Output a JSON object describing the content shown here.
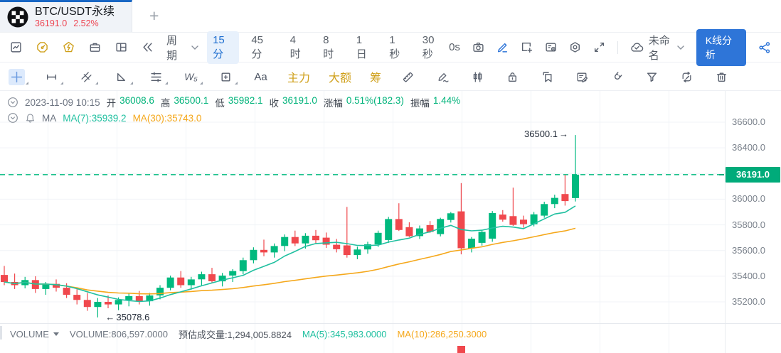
{
  "tab": {
    "symbol": "BTC/USDT永续",
    "price": "36191.0",
    "change": "2.52%",
    "new_tab": "+"
  },
  "toolbar": {
    "period": "周期",
    "timeframes": [
      "15分",
      "45分",
      "4时",
      "8时",
      "1日",
      "1秒",
      "30秒"
    ],
    "active_timeframe": "15分",
    "speed": "0s",
    "workspace": "未命名",
    "analyze_button": "K线分析"
  },
  "drawbar": {
    "wave": "W₅",
    "text_tool": "Aa",
    "main_force": "主力",
    "large_order": "大额",
    "chips": "筹"
  },
  "legend": {
    "time": "2023-11-09 10:15",
    "fields": [
      {
        "label": "开",
        "value": "36008.6"
      },
      {
        "label": "高",
        "value": "36500.1"
      },
      {
        "label": "低",
        "value": "35982.1"
      },
      {
        "label": "收",
        "value": "36191.0"
      },
      {
        "label": "涨幅",
        "value": "0.51%(182.3)"
      },
      {
        "label": "振幅",
        "value": "1.44%"
      }
    ],
    "ma_title": "MA",
    "ma7": "MA(7):35939.2",
    "ma30": "MA(30):35743.0"
  },
  "chart_data": {
    "type": "candlestick",
    "symbol": "BTC/USDT永续",
    "interval": "15分",
    "y_ticks": [
      36600.0,
      36400.0,
      36200.0,
      36000.0,
      35800.0,
      35600.0,
      35400.0,
      35200.0
    ],
    "hidden_tick": 36200.0,
    "ylim": [
      35050,
      36650
    ],
    "price_line": {
      "value": 36191.0,
      "label": "36191.0"
    },
    "annotations": [
      {
        "type": "high",
        "text": "36500.1",
        "arrow": "→"
      },
      {
        "type": "low",
        "text": "35078.6",
        "arrow": "←"
      }
    ],
    "last_candle": {
      "open": 36008.6,
      "high": 36500.1,
      "low": 35982.1,
      "close": 36191.0,
      "change_pct": "0.51%",
      "change_abs": "182.3",
      "amplitude": "1.44%"
    },
    "ma_last": {
      "ma7": 35939.2,
      "ma30": 35743.0
    },
    "candles": [
      [
        35410,
        35480,
        35330,
        35355
      ],
      [
        35355,
        35420,
        35300,
        35330
      ],
      [
        35330,
        35395,
        35305,
        35370
      ],
      [
        35370,
        35400,
        35270,
        35300
      ],
      [
        35300,
        35355,
        35255,
        35340
      ],
      [
        35340,
        35375,
        35280,
        35310
      ],
      [
        35310,
        35345,
        35230,
        35255
      ],
      [
        35255,
        35310,
        35180,
        35215
      ],
      [
        35215,
        35270,
        35130,
        35160
      ],
      [
        35160,
        35230,
        35078.6,
        35200
      ],
      [
        35200,
        35250,
        35150,
        35180
      ],
      [
        35180,
        35235,
        35135,
        35215
      ],
      [
        35215,
        35265,
        35165,
        35245
      ],
      [
        35245,
        35285,
        35180,
        35205
      ],
      [
        35205,
        35270,
        35170,
        35250
      ],
      [
        35250,
        35330,
        35220,
        35310
      ],
      [
        35310,
        35405,
        35290,
        35390
      ],
      [
        35390,
        35440,
        35310,
        35330
      ],
      [
        35330,
        35395,
        35295,
        35375
      ],
      [
        35375,
        35435,
        35330,
        35415
      ],
      [
        35415,
        35465,
        35345,
        35360
      ],
      [
        35360,
        35425,
        35320,
        35405
      ],
      [
        35405,
        35455,
        35355,
        35440
      ],
      [
        35440,
        35545,
        35415,
        35525
      ],
      [
        35525,
        35625,
        35500,
        35605
      ],
      [
        35605,
        35685,
        35555,
        35585
      ],
      [
        35585,
        35655,
        35545,
        35635
      ],
      [
        35635,
        35725,
        35595,
        35705
      ],
      [
        35705,
        35755,
        35635,
        35655
      ],
      [
        35655,
        35735,
        35615,
        35715
      ],
      [
        35715,
        35760,
        35655,
        35680
      ],
      [
        35700,
        35740,
        35620,
        35645
      ],
      [
        35645,
        35690,
        35585,
        35610
      ],
      [
        35640,
        35940,
        35545,
        35565
      ],
      [
        35565,
        35630,
        35532,
        35608
      ],
      [
        35608,
        35668,
        35575,
        35648
      ],
      [
        35648,
        35755,
        35628,
        35738
      ],
      [
        35682,
        35862,
        35660,
        35845
      ],
      [
        35845,
        35968,
        35752,
        35760
      ],
      [
        35782,
        35820,
        35705,
        35712
      ],
      [
        35712,
        35795,
        35690,
        35772
      ],
      [
        35798,
        35830,
        35738,
        35745
      ],
      [
        35728,
        35855,
        35710,
        35846
      ],
      [
        35838,
        35900,
        35818,
        35890
      ],
      [
        35905,
        36125,
        35570,
        35618
      ],
      [
        35618,
        35705,
        35585,
        35692
      ],
      [
        35660,
        35758,
        35638,
        35745
      ],
      [
        35692,
        35908,
        35668,
        35892
      ],
      [
        35880,
        35915,
        35825,
        35840
      ],
      [
        35868,
        36090,
        35792,
        35800
      ],
      [
        35840,
        35872,
        35778,
        35805
      ],
      [
        35805,
        35900,
        35788,
        35882
      ],
      [
        35872,
        35980,
        35855,
        35962
      ],
      [
        35962,
        36035,
        35930,
        36010
      ],
      [
        36040,
        36190,
        35950,
        35985
      ],
      [
        36008.6,
        36500.1,
        35982.1,
        36191.0
      ]
    ],
    "colors": {
      "up": "#00b97e",
      "down": "#f0484d",
      "ma7": "#20c0a0",
      "ma30": "#f5a81c",
      "price_badge": "#00ab7a",
      "grid": "#f0f3f7"
    }
  },
  "volume": {
    "title": "VOLUME",
    "value": "VOLUME:806,597.0000",
    "estimate": "预估成交量:1,294,005.8824",
    "ma5": "MA(5):345,983.0000",
    "ma10": "MA(10):286,250.3000",
    "bar_candle_index": 44
  }
}
